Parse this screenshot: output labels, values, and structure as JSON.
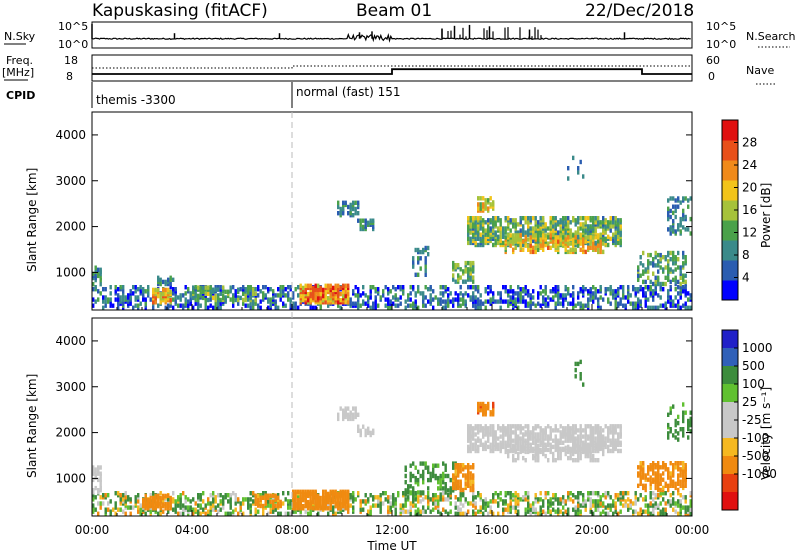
{
  "header": {
    "station": "Kapuskasing (fitACF)",
    "beam": "Beam 01",
    "date": "22/Dec/2018"
  },
  "strip_labels": {
    "nsky": "N.Sky",
    "nsky_ticks": [
      "10^5",
      "10^0"
    ],
    "nsearch": "N.Search",
    "nsearch_ticks": [
      "10^5",
      "10^0"
    ],
    "freq_label": "Freq.",
    "freq_unit": "[MHz]",
    "freq_ticks": [
      "18",
      "8"
    ],
    "nave": "Nave",
    "nave_ticks": [
      "60",
      "0"
    ],
    "cpid": "CPID"
  },
  "cpid_segments": [
    {
      "label": "themis -3300",
      "start_hour": 0
    },
    {
      "label": "normal (fast) 151",
      "start_hour": 8
    }
  ],
  "colors": {
    "power": [
      "#0000ff",
      "#2a5cb0",
      "#3a8a8a",
      "#4aa14a",
      "#a6c23a",
      "#f2c41a",
      "#f08a1a",
      "#e8501a",
      "#e01010"
    ],
    "velocity": [
      "#2020c8",
      "#3060b8",
      "#3c8c3c",
      "#60c030",
      "#c8c8c8",
      "#c8c8c8",
      "#f5b820",
      "#f08a10",
      "#e84010",
      "#e01010"
    ],
    "ground_scatter": "#9a9a9a"
  },
  "chart_data": [
    {
      "type": "heatmap",
      "panel": "power",
      "ylabel": "Slant Range [km]",
      "yticks": [
        "1000",
        "2000",
        "3000",
        "4000"
      ],
      "ylim": [
        180,
        4500
      ],
      "xlim_hours": [
        0,
        24
      ],
      "colorbar_label": "Power [dB]",
      "colorbar_ticks": [
        "4",
        "8",
        "12",
        "16",
        "20",
        "24",
        "28"
      ],
      "colorbar_range": [
        0,
        30
      ],
      "echo_regions": [
        {
          "t0": 0.0,
          "t1": 24.0,
          "r0": 180,
          "r1": 650,
          "density": 0.35,
          "value": 6,
          "spread": 6
        },
        {
          "t0": 0.0,
          "t1": 0.4,
          "r0": 650,
          "r1": 1100,
          "density": 0.5,
          "value": 8,
          "spread": 5
        },
        {
          "t0": 2.4,
          "t1": 3.2,
          "r0": 300,
          "r1": 600,
          "density": 0.7,
          "value": 20,
          "spread": 6
        },
        {
          "t0": 2.6,
          "t1": 3.3,
          "r0": 700,
          "r1": 850,
          "density": 0.5,
          "value": 8,
          "spread": 4
        },
        {
          "t0": 4.0,
          "t1": 6.5,
          "r0": 350,
          "r1": 650,
          "density": 0.4,
          "value": 12,
          "spread": 5
        },
        {
          "t0": 8.3,
          "t1": 10.2,
          "r0": 300,
          "r1": 700,
          "density": 0.8,
          "value": 22,
          "spread": 6
        },
        {
          "t0": 9.8,
          "t1": 10.6,
          "r0": 2200,
          "r1": 2500,
          "density": 0.5,
          "value": 8,
          "spread": 4
        },
        {
          "t0": 10.6,
          "t1": 11.2,
          "r0": 1900,
          "r1": 2100,
          "density": 0.5,
          "value": 8,
          "spread": 4
        },
        {
          "t0": 12.8,
          "t1": 13.4,
          "r0": 900,
          "r1": 1500,
          "density": 0.25,
          "value": 8,
          "spread": 4
        },
        {
          "t0": 14.4,
          "t1": 15.2,
          "r0": 750,
          "r1": 1200,
          "density": 0.5,
          "value": 12,
          "spread": 5
        },
        {
          "t0": 15.4,
          "t1": 16.0,
          "r0": 2300,
          "r1": 2600,
          "density": 0.6,
          "value": 16,
          "spread": 6
        },
        {
          "t0": 15.0,
          "t1": 21.2,
          "r0": 1550,
          "r1": 2150,
          "density": 0.6,
          "value": 12,
          "spread": 6
        },
        {
          "t0": 16.5,
          "t1": 20.5,
          "r0": 1400,
          "r1": 1800,
          "density": 0.45,
          "value": 18,
          "spread": 6
        },
        {
          "t0": 21.8,
          "t1": 23.8,
          "r0": 700,
          "r1": 1400,
          "density": 0.4,
          "value": 10,
          "spread": 5
        },
        {
          "t0": 23.0,
          "t1": 24.0,
          "r0": 1800,
          "r1": 2600,
          "density": 0.25,
          "value": 8,
          "spread": 4
        },
        {
          "t0": 19.0,
          "t1": 19.8,
          "r0": 3000,
          "r1": 3500,
          "density": 0.1,
          "value": 6,
          "spread": 3
        }
      ]
    },
    {
      "type": "heatmap",
      "panel": "velocity",
      "ylabel": "Slant Range [km]",
      "yticks": [
        "1000",
        "2000",
        "3000",
        "4000"
      ],
      "ylim": [
        180,
        4500
      ],
      "xlim_hours": [
        0,
        24
      ],
      "xticks": [
        "00:00",
        "04:00",
        "08:00",
        "12:00",
        "16:00",
        "20:00",
        "00:00"
      ],
      "xlabel": "Time UT",
      "colorbar_label": "Velocity [m s⁻¹]",
      "colorbar_ticks": [
        "1000",
        "500",
        "100",
        "25",
        "-25",
        "-100",
        "-500",
        "-1000"
      ],
      "colorbar_range": [
        -1200,
        1200
      ],
      "echo_regions": [
        {
          "t0": 0.0,
          "t1": 24.0,
          "r0": 180,
          "r1": 650,
          "density": 0.35,
          "value": 60,
          "spread": 200
        },
        {
          "t0": 0.0,
          "t1": 0.4,
          "r0": 650,
          "r1": 1200,
          "density": 0.5,
          "value": 0,
          "spread": 20
        },
        {
          "t0": 2.0,
          "t1": 3.2,
          "r0": 300,
          "r1": 600,
          "density": 0.6,
          "value": -150,
          "spread": 60
        },
        {
          "t0": 6.5,
          "t1": 7.5,
          "r0": 350,
          "r1": 600,
          "density": 0.5,
          "value": -150,
          "spread": 60
        },
        {
          "t0": 8.0,
          "t1": 10.2,
          "r0": 300,
          "r1": 700,
          "density": 0.8,
          "value": -180,
          "spread": 60
        },
        {
          "t0": 9.8,
          "t1": 10.6,
          "r0": 2250,
          "r1": 2500,
          "density": 0.5,
          "value": 0,
          "spread": 20
        },
        {
          "t0": 10.6,
          "t1": 11.2,
          "r0": 1900,
          "r1": 2100,
          "density": 0.5,
          "value": 0,
          "spread": 20
        },
        {
          "t0": 12.5,
          "t1": 14.5,
          "r0": 600,
          "r1": 1300,
          "density": 0.3,
          "value": 150,
          "spread": 80
        },
        {
          "t0": 14.4,
          "t1": 15.2,
          "r0": 700,
          "r1": 1250,
          "density": 0.55,
          "value": -150,
          "spread": 60
        },
        {
          "t0": 15.4,
          "t1": 16.0,
          "r0": 2350,
          "r1": 2600,
          "density": 0.6,
          "value": -400,
          "spread": 150
        },
        {
          "t0": 15.0,
          "t1": 21.2,
          "r0": 1550,
          "r1": 2100,
          "density": 0.6,
          "value": 0,
          "spread": 20
        },
        {
          "t0": 16.5,
          "t1": 20.5,
          "r0": 1350,
          "r1": 1700,
          "density": 0.4,
          "value": 0,
          "spread": 20
        },
        {
          "t0": 21.8,
          "t1": 23.8,
          "r0": 700,
          "r1": 1300,
          "density": 0.45,
          "value": -150,
          "spread": 60
        },
        {
          "t0": 23.0,
          "t1": 24.0,
          "r0": 1800,
          "r1": 2600,
          "density": 0.25,
          "value": 150,
          "spread": 60
        },
        {
          "t0": 19.0,
          "t1": 19.8,
          "r0": 3000,
          "r1": 3500,
          "density": 0.1,
          "value": 150,
          "spread": 60
        }
      ]
    }
  ],
  "nsky_series": {
    "baseline_log": 1.8,
    "spikes": [
      [
        0.0,
        5.0
      ],
      [
        3.3,
        3.0
      ],
      [
        7.5,
        3.0
      ],
      [
        10.7,
        3.2
      ],
      [
        11.2,
        3.4
      ],
      [
        14.0,
        4.0
      ],
      [
        14.5,
        4.6
      ],
      [
        15.1,
        4.8
      ],
      [
        15.9,
        4.5
      ],
      [
        17.5,
        3.8
      ],
      [
        21.3,
        3.2
      ]
    ]
  },
  "freq_series": {
    "steps": [
      [
        0,
        10.5
      ],
      [
        8,
        10.5
      ],
      [
        12,
        12.5
      ],
      [
        22,
        12.5
      ],
      [
        22,
        10.5
      ],
      [
        24,
        10.5
      ]
    ]
  },
  "nave_series": {
    "steps": [
      [
        0,
        30
      ],
      [
        8,
        30
      ],
      [
        8,
        35
      ],
      [
        24,
        35
      ]
    ]
  }
}
